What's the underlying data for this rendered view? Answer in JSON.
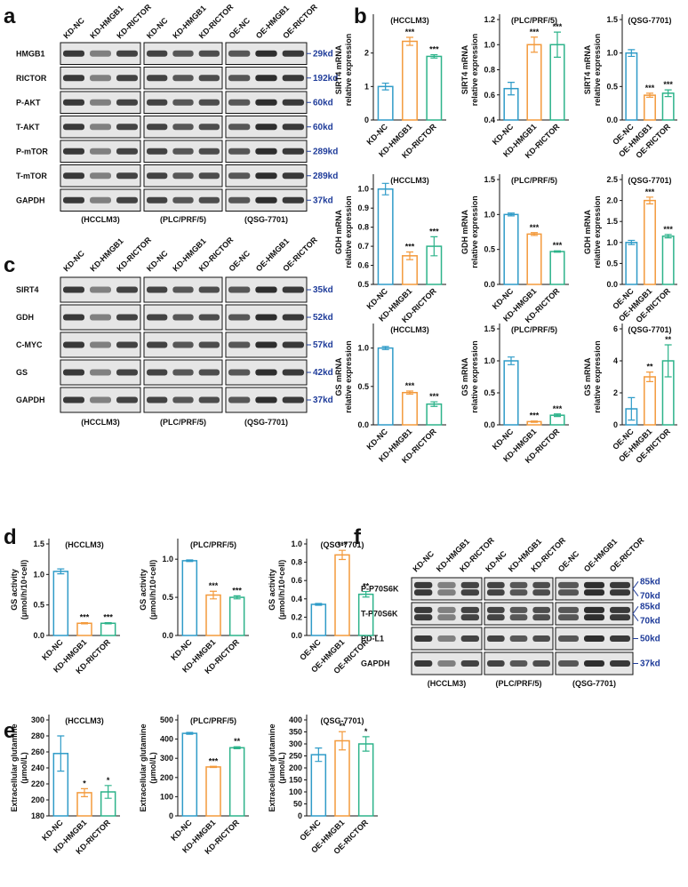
{
  "panel_labels": [
    "a",
    "b",
    "c",
    "d",
    "e",
    "f"
  ],
  "blots": [
    {
      "lanes": [
        "KD-NC",
        "KD-HMGB1",
        "KD-RICTOR",
        "KD-NC",
        "KD-HMGB1",
        "KD-RICTOR",
        "OE-NC",
        "OE-HMGB1",
        "OE-RICTOR"
      ],
      "groups": [
        "(HCCLM3)",
        "(PLC/PRF/5)",
        "(QSG-7701)"
      ],
      "rows": [
        {
          "name": "HMGB1",
          "kd": [
            "29kd"
          ]
        },
        {
          "name": "RICTOR",
          "kd": [
            "192kd"
          ]
        },
        {
          "name": "P-AKT",
          "kd": [
            "60kd"
          ]
        },
        {
          "name": "T-AKT",
          "kd": [
            "60kd"
          ]
        },
        {
          "name": "P-mTOR",
          "kd": [
            "289kd"
          ]
        },
        {
          "name": "T-mTOR",
          "kd": [
            "289kd"
          ]
        },
        {
          "name": "GAPDH",
          "kd": [
            "37kd"
          ]
        }
      ]
    },
    {
      "lanes": [
        "KD-NC",
        "KD-HMGB1",
        "KD-RICTOR",
        "KD-NC",
        "KD-HMGB1",
        "KD-RICTOR",
        "OE-NC",
        "OE-HMGB1",
        "OE-RICTOR"
      ],
      "groups": [
        "(HCCLM3)",
        "(PLC/PRF/5)",
        "(QSG-7701)"
      ],
      "rows": [
        {
          "name": "SIRT4",
          "kd": [
            "35kd"
          ]
        },
        {
          "name": "GDH",
          "kd": [
            "52kd"
          ]
        },
        {
          "name": "C-MYC",
          "kd": [
            "57kd"
          ]
        },
        {
          "name": "GS",
          "kd": [
            "42kd"
          ]
        },
        {
          "name": "GAPDH",
          "kd": [
            "37kd"
          ]
        }
      ]
    },
    {
      "lanes": [
        "KD-NC",
        "KD-HMGB1",
        "KD-RICTOR",
        "KD-NC",
        "KD-HMGB1",
        "KD-RICTOR",
        "OE-NC",
        "OE-HMGB1",
        "OE-RICTOR"
      ],
      "groups": [
        "(HCCLM3)",
        "(PLC/PRF/5)",
        "(QSG-7701)"
      ],
      "rows": [
        {
          "name": "P-P70S6K",
          "kd": [
            "85kd",
            "70kd"
          ]
        },
        {
          "name": "T-P70S6K",
          "kd": [
            "85kd",
            "70kd"
          ]
        },
        {
          "name": "PD-L1",
          "kd": [
            "50kd"
          ]
        },
        {
          "name": "GAPDH",
          "kd": [
            "37kd"
          ]
        }
      ]
    }
  ],
  "chart_data": [
    {
      "type": "bar",
      "title": "(HCCLM3)",
      "ylabel": [
        "SIRT4 mRNA",
        "relative expression"
      ],
      "categories": [
        "KD-NC",
        "KD-HMGB1",
        "KD-RICTOR"
      ],
      "values": [
        1.0,
        2.35,
        1.9
      ],
      "errors": [
        0.1,
        0.12,
        0.05
      ],
      "annotations": [
        null,
        "***",
        "***"
      ],
      "colors": [
        "#2f9bc8",
        "#f39a3c",
        "#2db38a"
      ],
      "ylim": [
        0,
        3
      ],
      "yticks": [
        0,
        1,
        2
      ]
    },
    {
      "type": "bar",
      "title": "(PLC/PRF/5)",
      "ylabel": [
        "SIRT4 mRNA",
        "relative expression"
      ],
      "categories": [
        "KD-NC",
        "KD-HMGB1",
        "KD-RICTOR"
      ],
      "values": [
        0.65,
        1.0,
        1.0
      ],
      "errors": [
        0.05,
        0.06,
        0.1
      ],
      "annotations": [
        null,
        "***",
        "***"
      ],
      "colors": [
        "#2f9bc8",
        "#f39a3c",
        "#2db38a"
      ],
      "ylim": [
        0.4,
        1.2
      ],
      "yticks": [
        0.4,
        0.6,
        0.8,
        {
          "value": 1,
          "label": "1.0"
        },
        1.2
      ]
    },
    {
      "type": "bar",
      "title": "(QSG-7701)",
      "ylabel": [
        "SIRT4 mRNA",
        "relative expression"
      ],
      "categories": [
        "OE-NC",
        "OE-HMGB1",
        "OE-RICTOR"
      ],
      "values": [
        1.0,
        0.37,
        0.4
      ],
      "errors": [
        0.05,
        0.03,
        0.05
      ],
      "annotations": [
        null,
        "***",
        "***"
      ],
      "colors": [
        "#2f9bc8",
        "#f39a3c",
        "#2db38a"
      ],
      "ylim": [
        0,
        1.5
      ],
      "yticks": [
        {
          "value": 0,
          "label": "0.0"
        },
        0.5,
        {
          "value": 1,
          "label": "1.0"
        },
        1.5
      ]
    },
    {
      "type": "bar",
      "title": "(HCCLM3)",
      "ylabel": [
        "GDH mRNA",
        "relative expression"
      ],
      "categories": [
        "KD-NC",
        "KD-HMGB1",
        "KD-RICTOR"
      ],
      "values": [
        1.0,
        0.65,
        0.7
      ],
      "errors": [
        0.03,
        0.02,
        0.05
      ],
      "annotations": [
        null,
        "***",
        "***"
      ],
      "colors": [
        "#2f9bc8",
        "#f39a3c",
        "#2db38a"
      ],
      "ylim": [
        0.5,
        1.05
      ],
      "yticks": [
        0.5,
        0.6,
        0.7,
        0.8,
        0.9,
        {
          "value": 1,
          "label": "1.0"
        }
      ]
    },
    {
      "type": "bar",
      "title": "(PLC/PRF/5)",
      "ylabel": [
        "GDH mRNA",
        "relative expression"
      ],
      "categories": [
        "KD-NC",
        "KD-HMGB1",
        "KD-RICTOR"
      ],
      "values": [
        1.0,
        0.72,
        0.47
      ],
      "errors": [
        0.02,
        0.02,
        0.01
      ],
      "annotations": [
        null,
        "***",
        "***"
      ],
      "colors": [
        "#2f9bc8",
        "#f39a3c",
        "#2db38a"
      ],
      "ylim": [
        0,
        1.5
      ],
      "yticks": [
        {
          "value": 0,
          "label": "0.0"
        },
        0.5,
        {
          "value": 1,
          "label": "1.0"
        },
        1.5
      ]
    },
    {
      "type": "bar",
      "title": "(QSG-7701)",
      "ylabel": [
        "GDH mRNA",
        "relative expression"
      ],
      "categories": [
        "OE-NC",
        "OE-HMGB1",
        "OE-RICTOR"
      ],
      "values": [
        1.0,
        2.0,
        1.15
      ],
      "errors": [
        0.05,
        0.08,
        0.04
      ],
      "annotations": [
        null,
        "***",
        "***"
      ],
      "colors": [
        "#2f9bc8",
        "#f39a3c",
        "#2db38a"
      ],
      "ylim": [
        0,
        2.5
      ],
      "yticks": [
        {
          "value": 0,
          "label": "0.0"
        },
        0.5,
        {
          "value": 1,
          "label": "1.0"
        },
        1.5,
        {
          "value": 2,
          "label": "2.0"
        },
        2.5
      ]
    },
    {
      "type": "bar",
      "title": "(HCCLM3)",
      "ylabel": [
        "GS mRNA",
        "relative expression"
      ],
      "categories": [
        "KD-NC",
        "KD-HMGB1",
        "KD-RICTOR"
      ],
      "values": [
        1.0,
        0.42,
        0.27
      ],
      "errors": [
        0.02,
        0.02,
        0.03
      ],
      "annotations": [
        null,
        "***",
        "***"
      ],
      "colors": [
        "#2f9bc8",
        "#f39a3c",
        "#2db38a"
      ],
      "ylim": [
        0,
        1.25
      ],
      "yticks": [
        {
          "value": 0,
          "label": "0.0"
        },
        0.5,
        {
          "value": 1,
          "label": "1.0"
        }
      ]
    },
    {
      "type": "bar",
      "title": "(PLC/PRF/5)",
      "ylabel": [
        "GS mRNA",
        "relative expression"
      ],
      "categories": [
        "KD-NC",
        "KD-HMGB1",
        "KD-RICTOR"
      ],
      "values": [
        1.0,
        0.05,
        0.15
      ],
      "errors": [
        0.06,
        0.01,
        0.02
      ],
      "annotations": [
        null,
        "***",
        "***"
      ],
      "colors": [
        "#2f9bc8",
        "#f39a3c",
        "#2db38a"
      ],
      "ylim": [
        0,
        1.5
      ],
      "yticks": [
        {
          "value": 0,
          "label": "0.0"
        },
        0.5,
        {
          "value": 1,
          "label": "1.0"
        },
        1.5
      ]
    },
    {
      "type": "bar",
      "title": "(QSG-7701)",
      "ylabel": [
        "GS mRNA",
        "relative expression"
      ],
      "categories": [
        "OE-NC",
        "OE-HMGB1",
        "OE-RICTOR"
      ],
      "values": [
        1.0,
        3.0,
        4.0
      ],
      "errors": [
        0.7,
        0.3,
        1.0
      ],
      "annotations": [
        null,
        "**",
        "**"
      ],
      "colors": [
        "#2f9bc8",
        "#f39a3c",
        "#2db38a"
      ],
      "ylim": [
        0,
        6
      ],
      "yticks": [
        0,
        2,
        4,
        6
      ]
    },
    {
      "type": "bar",
      "title": "(HCCLM3)",
      "ylabel": [
        "GS activity",
        "(μmol/h/10⁴cell)"
      ],
      "categories": [
        "KD-NC",
        "KD-HMGB1",
        "KD-RICTOR"
      ],
      "values": [
        1.05,
        0.2,
        0.2
      ],
      "errors": [
        0.04,
        0.01,
        0.01
      ],
      "annotations": [
        null,
        "***",
        "***"
      ],
      "colors": [
        "#2f9bc8",
        "#f39a3c",
        "#2db38a"
      ],
      "ylim": [
        0,
        1.5
      ],
      "yticks": [
        {
          "value": 0,
          "label": "0.0"
        },
        0.5,
        {
          "value": 1,
          "label": "1.0"
        },
        1.5
      ]
    },
    {
      "type": "bar",
      "title": "(PLC/PRF/5)",
      "ylabel": [
        "GS activity",
        "(μmol/h/10⁴cell)"
      ],
      "categories": [
        "KD-NC",
        "KD-HMGB1",
        "KD-RICTOR"
      ],
      "values": [
        0.98,
        0.53,
        0.5
      ],
      "errors": [
        0.01,
        0.05,
        0.02
      ],
      "annotations": [
        null,
        "***",
        "***"
      ],
      "colors": [
        "#2f9bc8",
        "#f39a3c",
        "#2db38a"
      ],
      "ylim": [
        0,
        1.2
      ],
      "yticks": [
        {
          "value": 0,
          "label": "0.0"
        },
        0.5,
        {
          "value": 1,
          "label": "1.0"
        }
      ]
    },
    {
      "type": "bar",
      "title": "(QSG-7701)",
      "ylabel": [
        "GS activity",
        "(μmol/h/10⁴cell)"
      ],
      "categories": [
        "OE-NC",
        "OE-HMGB1",
        "OE-RICTOR"
      ],
      "values": [
        0.34,
        0.88,
        0.45
      ],
      "errors": [
        0.01,
        0.05,
        0.03
      ],
      "annotations": [
        null,
        "***",
        "**"
      ],
      "colors": [
        "#2f9bc8",
        "#f39a3c",
        "#2db38a"
      ],
      "ylim": [
        0,
        1.0
      ],
      "yticks": [
        {
          "value": 0,
          "label": "0.0"
        },
        0.2,
        0.4,
        0.6,
        0.8,
        {
          "value": 1,
          "label": "1.0"
        }
      ]
    },
    {
      "type": "bar",
      "title": "(HCCLM3)",
      "ylabel": [
        "Extracellular glutamine",
        "(μmol/L)"
      ],
      "categories": [
        "KD-NC",
        "KD-HMGB1",
        "KD-RICTOR"
      ],
      "values": [
        258,
        209,
        210
      ],
      "errors": [
        22,
        5,
        8
      ],
      "annotations": [
        null,
        "*",
        "*"
      ],
      "colors": [
        "#2f9bc8",
        "#f39a3c",
        "#2db38a"
      ],
      "ylim": [
        180,
        300
      ],
      "yticks": [
        180,
        200,
        220,
        240,
        260,
        280,
        300
      ]
    },
    {
      "type": "bar",
      "title": "(PLC/PRF/5)",
      "ylabel": [
        "Extracellular glutamine",
        "(μmol/L)"
      ],
      "categories": [
        "KD-NC",
        "KD-HMGB1",
        "KD-RICTOR"
      ],
      "values": [
        430,
        255,
        355
      ],
      "errors": [
        5,
        3,
        5
      ],
      "annotations": [
        null,
        "***",
        "**"
      ],
      "colors": [
        "#2f9bc8",
        "#f39a3c",
        "#2db38a"
      ],
      "ylim": [
        0,
        500
      ],
      "yticks": [
        0,
        100,
        200,
        300,
        400,
        500
      ]
    },
    {
      "type": "bar",
      "title": "(QSG-7701)",
      "ylabel": [
        "Extracellular glutamine",
        "(μmol/L)"
      ],
      "categories": [
        "OE-NC",
        "OE-HMGB1",
        "OE-RICTOR"
      ],
      "values": [
        255,
        313,
        300
      ],
      "errors": [
        28,
        38,
        30
      ],
      "annotations": [
        null,
        "**",
        "*"
      ],
      "colors": [
        "#2f9bc8",
        "#f39a3c",
        "#2db38a"
      ],
      "ylim": [
        0,
        400
      ],
      "yticks": [
        0,
        50,
        100,
        150,
        200,
        250,
        300,
        350,
        400
      ]
    }
  ]
}
